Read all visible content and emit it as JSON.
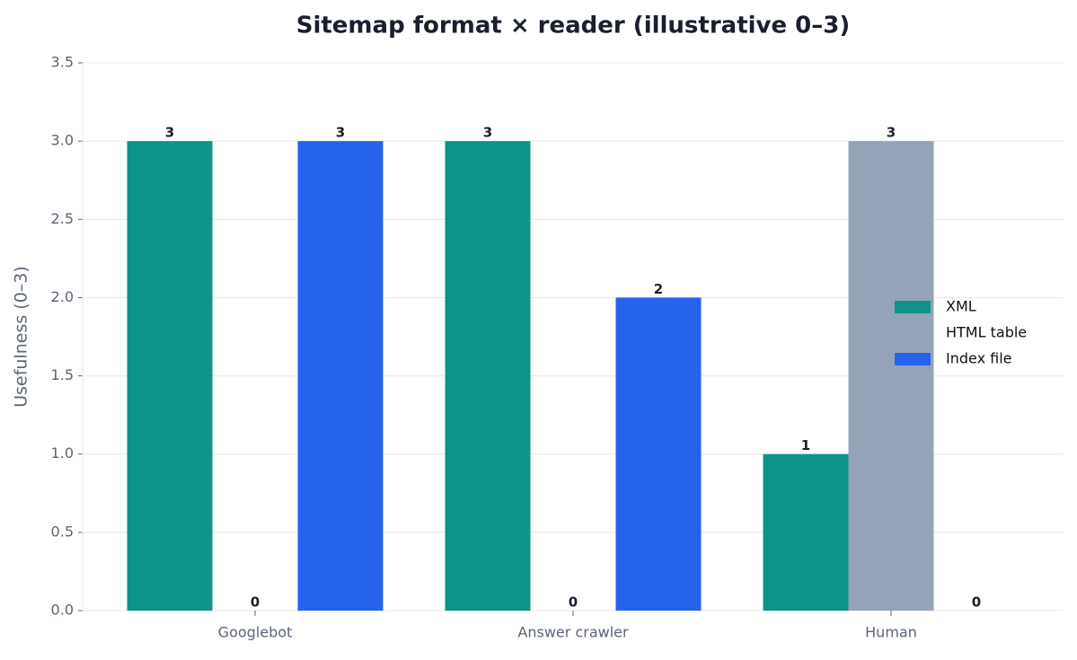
{
  "chart_data": {
    "type": "bar",
    "title": "Sitemap format × reader (illustrative 0–3)",
    "y_label": "Usefulness (0–3)",
    "categories": [
      "Googlebot",
      "Answer crawler",
      "Human"
    ],
    "series": [
      {
        "name": "XML",
        "color": "#0d9488",
        "values": [
          3,
          3,
          1
        ]
      },
      {
        "name": "HTML table",
        "color": "#94a3b8",
        "values": [
          0,
          0,
          3
        ]
      },
      {
        "name": "Index file",
        "color": "#2563eb",
        "values": [
          3,
          2,
          0
        ]
      }
    ],
    "ylim": [
      0,
      3.5
    ],
    "yticks": [
      {
        "value": 0,
        "label": "0.0"
      },
      0.5,
      {
        "value": 1,
        "label": "1.0"
      },
      1.5,
      {
        "value": 2,
        "label": "2.0"
      },
      2.5,
      {
        "value": 3,
        "label": "3.0"
      },
      3.5
    ],
    "grid": true,
    "legend": "right"
  }
}
